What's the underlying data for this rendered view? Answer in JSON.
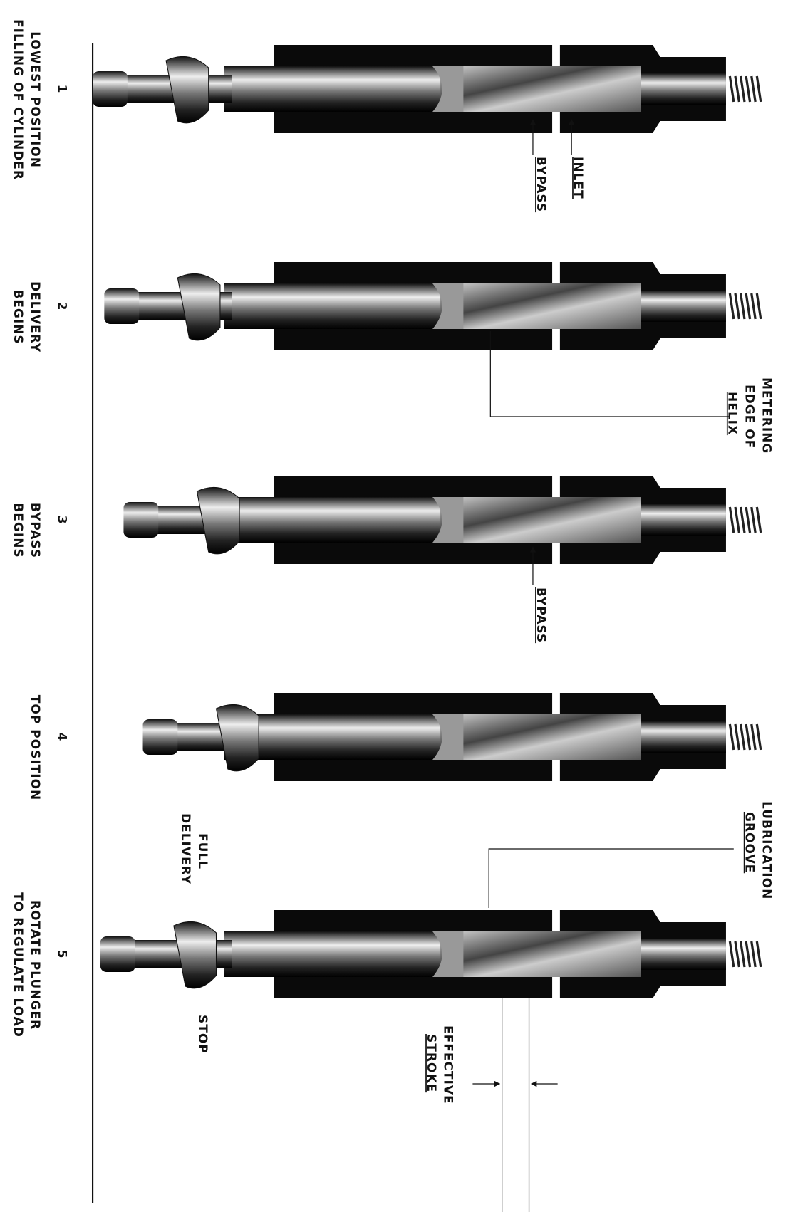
{
  "stages": [
    {
      "number": "1",
      "caption": [
        "LOWEST POSITION",
        "FILLING OF CYLINDER"
      ]
    },
    {
      "number": "2",
      "caption": [
        "DELIVERY",
        "BEGINS"
      ]
    },
    {
      "number": "3",
      "caption": [
        "BYPASS",
        "BEGINS"
      ]
    },
    {
      "number": "4",
      "caption": [
        "TOP POSITION"
      ]
    },
    {
      "number": "5",
      "caption": [
        "ROTATE PLUNGER",
        "TO REGULATE LOAD"
      ]
    }
  ],
  "callouts": {
    "inlet": "INLET",
    "bypass_top": "BYPASS",
    "metering": [
      "METERING",
      "EDGE OF",
      "HELIX"
    ],
    "bypass_mid": "BYPASS",
    "lubrication": [
      "LUBRICATION",
      "GROOVE"
    ],
    "full_delivery": [
      "FULL",
      "DELIVERY"
    ],
    "stop": "STOP",
    "effective_stroke": [
      "EFFECTIVE",
      "STROKE"
    ]
  }
}
